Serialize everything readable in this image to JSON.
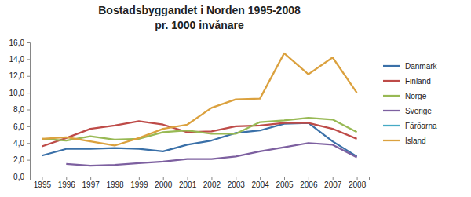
{
  "chart_data": {
    "type": "line",
    "title": "Bostadsbyggandet i Norden 1995-2008",
    "subtitle": "pr. 1000 invånare",
    "categories": [
      "1995",
      "1996",
      "1997",
      "1998",
      "1999",
      "2000",
      "2001",
      "2002",
      "2003",
      "2004",
      "2005",
      "2006",
      "2007",
      "2008"
    ],
    "series": [
      {
        "name": "Danmark",
        "color": "#3a70a8",
        "values": [
          2.5,
          3.3,
          3.3,
          3.4,
          3.3,
          3.0,
          3.8,
          4.3,
          5.2,
          5.5,
          6.3,
          6.4,
          4.2,
          2.4
        ]
      },
      {
        "name": "Finland",
        "color": "#be4b48",
        "values": [
          3.6,
          4.6,
          5.7,
          6.1,
          6.6,
          6.2,
          5.3,
          5.4,
          6.0,
          6.1,
          6.4,
          6.4,
          5.7,
          4.5
        ]
      },
      {
        "name": "Norge",
        "color": "#98b954",
        "values": [
          4.5,
          4.3,
          4.8,
          4.4,
          4.5,
          5.3,
          5.5,
          5.1,
          5.1,
          6.5,
          6.7,
          7.0,
          6.8,
          5.3
        ]
      },
      {
        "name": "Sverige",
        "color": "#7d60a0",
        "values": [
          null,
          1.5,
          1.3,
          1.4,
          1.6,
          1.8,
          2.1,
          2.1,
          2.4,
          3.0,
          3.5,
          4.0,
          3.8,
          2.3
        ]
      },
      {
        "name": "Färöarna",
        "color": "#46aac5",
        "values": [
          null,
          null,
          null,
          null,
          null,
          null,
          null,
          null,
          null,
          null,
          null,
          null,
          null,
          null
        ]
      },
      {
        "name": "Island",
        "color": "#dba13e",
        "values": [
          4.5,
          4.7,
          4.2,
          3.7,
          4.6,
          5.7,
          6.2,
          8.2,
          9.2,
          9.3,
          14.7,
          12.2,
          14.2,
          10.0
        ]
      }
    ],
    "ylim": [
      0,
      16
    ],
    "yticks": [
      {
        "value": 0,
        "label": "0,0"
      },
      {
        "value": 2,
        "label": "2,0"
      },
      {
        "value": 4,
        "label": "4,0"
      },
      {
        "value": 6,
        "label": "6,0"
      },
      {
        "value": 8,
        "label": "8,0"
      },
      {
        "value": 10,
        "label": "10,0"
      },
      {
        "value": 12,
        "label": "12,0"
      },
      {
        "value": 14,
        "label": "14,0"
      },
      {
        "value": 16,
        "label": "16,0"
      }
    ],
    "grid": false,
    "legend": "right"
  }
}
